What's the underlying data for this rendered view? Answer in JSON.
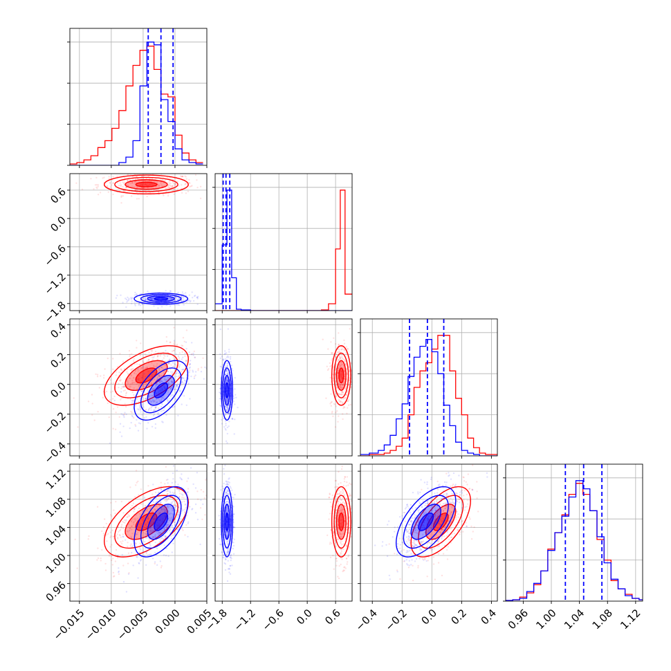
{
  "colors": {
    "red": "#ff0000",
    "blue": "#0000ff"
  },
  "chart_data": {
    "type": "corner",
    "grid": true,
    "params": [
      {
        "range": [
          -0.0165,
          0.005
        ],
        "ticks": [
          -0.015,
          -0.01,
          -0.005,
          0.0,
          0.005
        ],
        "tick_labels": [
          "−0.015",
          "−0.010",
          "−0.005",
          "0.000",
          "0.005"
        ]
      },
      {
        "range": [
          -1.95,
          0.95
        ],
        "ticks": [
          -1.8,
          -1.2,
          -0.6,
          0.0,
          0.6
        ],
        "tick_labels": [
          "−1.8",
          "−1.2",
          "−0.6",
          "0.0",
          "0.6"
        ]
      },
      {
        "range": [
          -0.48,
          0.44
        ],
        "ticks": [
          -0.4,
          -0.2,
          0.0,
          0.2,
          0.4
        ],
        "tick_labels": [
          "−0.4",
          "−0.2",
          "0.0",
          "0.2",
          "0.4"
        ]
      },
      {
        "range": [
          0.935,
          1.13
        ],
        "ticks": [
          0.96,
          1.0,
          1.04,
          1.08,
          1.12
        ],
        "tick_labels": [
          "0.96",
          "1.00",
          "1.04",
          "1.08",
          "1.12"
        ]
      }
    ],
    "samples": [
      {
        "name": "",
        "color": "#ff0000",
        "mean": [
          -0.0045,
          0.72,
          0.06,
          1.048
        ],
        "std": [
          0.0033,
          0.1,
          0.1,
          0.025
        ]
      },
      {
        "name": "",
        "color": "#0000ff",
        "mean": [
          -0.0022,
          -1.7,
          -0.04,
          1.048
        ],
        "std": [
          0.0021,
          0.06,
          0.1,
          0.025
        ],
        "quantiles": [
          [
            -0.0042,
            -0.0022,
            -0.0003
          ],
          [
            -1.78,
            -1.72,
            -1.64
          ],
          [
            -0.15,
            -0.03,
            0.08
          ],
          [
            1.02,
            1.046,
            1.072
          ]
        ]
      }
    ],
    "histograms": [
      {
        "bin_edges": [
          -0.0165,
          -0.0154,
          -0.0143,
          -0.0132,
          -0.0121,
          -0.011,
          -0.0099,
          -0.0088,
          -0.0077,
          -0.0066,
          -0.0055,
          -0.0044,
          -0.0033,
          -0.0022,
          -0.0011,
          0.0,
          0.0011,
          0.0022,
          0.0033,
          0.0044
        ],
        "red": [
          0.01,
          0.02,
          0.04,
          0.07,
          0.13,
          0.18,
          0.27,
          0.4,
          0.58,
          0.73,
          0.84,
          0.87,
          0.7,
          0.52,
          0.5,
          0.22,
          0.09,
          0.04,
          0.02
        ],
        "blue": [
          0,
          0,
          0,
          0,
          0,
          0,
          0,
          0.02,
          0.06,
          0.18,
          0.58,
          0.9,
          0.88,
          0.48,
          0.32,
          0.12,
          0.04,
          0.02,
          0.01
        ]
      },
      {
        "bin_edges": [
          -1.95,
          -1.8,
          -1.7,
          -1.6,
          -1.5,
          -1.4,
          -1.2,
          -0.9,
          -0.6,
          -0.3,
          0.0,
          0.3,
          0.45,
          0.6,
          0.7,
          0.8,
          0.95
        ],
        "red": [
          0,
          0,
          0,
          0,
          0,
          0,
          0,
          0,
          0,
          0,
          0,
          0.005,
          0.05,
          0.45,
          0.88,
          0.12
        ],
        "blue": [
          0.05,
          0.48,
          0.88,
          0.24,
          0.01,
          0.005,
          0,
          0,
          0,
          0,
          0,
          0,
          0,
          0,
          0,
          0
        ]
      },
      {
        "bin_edges": [
          -0.48,
          -0.42,
          -0.36,
          -0.32,
          -0.28,
          -0.24,
          -0.2,
          -0.16,
          -0.12,
          -0.08,
          -0.04,
          0.0,
          0.04,
          0.08,
          0.12,
          0.16,
          0.2,
          0.24,
          0.28,
          0.32,
          0.36,
          0.44
        ],
        "red": [
          0,
          0.01,
          0.01,
          0.02,
          0.04,
          0.07,
          0.13,
          0.3,
          0.5,
          0.62,
          0.68,
          0.78,
          0.88,
          0.88,
          0.62,
          0.42,
          0.3,
          0.13,
          0.06,
          0.02,
          0.01
        ],
        "blue": [
          0.01,
          0.02,
          0.04,
          0.08,
          0.15,
          0.27,
          0.38,
          0.58,
          0.72,
          0.8,
          0.85,
          0.76,
          0.6,
          0.37,
          0.22,
          0.1,
          0.04,
          0.02,
          0.01,
          0,
          0
        ]
      },
      {
        "bin_edges": [
          0.935,
          0.945,
          0.955,
          0.965,
          0.975,
          0.985,
          0.995,
          1.005,
          1.015,
          1.025,
          1.035,
          1.045,
          1.055,
          1.065,
          1.075,
          1.085,
          1.095,
          1.105,
          1.115,
          1.125,
          1.13
        ],
        "red": [
          0.005,
          0.01,
          0.03,
          0.06,
          0.12,
          0.22,
          0.38,
          0.5,
          0.63,
          0.78,
          0.86,
          0.78,
          0.66,
          0.45,
          0.3,
          0.15,
          0.09,
          0.05,
          0.02,
          0.01
        ],
        "blue": [
          0.005,
          0.01,
          0.02,
          0.07,
          0.13,
          0.22,
          0.37,
          0.5,
          0.62,
          0.76,
          0.88,
          0.82,
          0.66,
          0.47,
          0.28,
          0.16,
          0.09,
          0.04,
          0.02,
          0.01
        ]
      }
    ],
    "correlations": [
      {
        "pair": [
          1,
          0
        ],
        "red": 0.0,
        "blue": 0.0
      },
      {
        "pair": [
          2,
          0
        ],
        "red": 0.55,
        "blue": 0.55
      },
      {
        "pair": [
          2,
          1
        ],
        "red": 0.0,
        "blue": 0.0
      },
      {
        "pair": [
          3,
          0
        ],
        "red": 0.55,
        "blue": 0.55
      },
      {
        "pair": [
          3,
          1
        ],
        "red": 0.0,
        "blue": 0.0
      },
      {
        "pair": [
          3,
          2
        ],
        "red": 0.6,
        "blue": 0.6
      }
    ]
  }
}
